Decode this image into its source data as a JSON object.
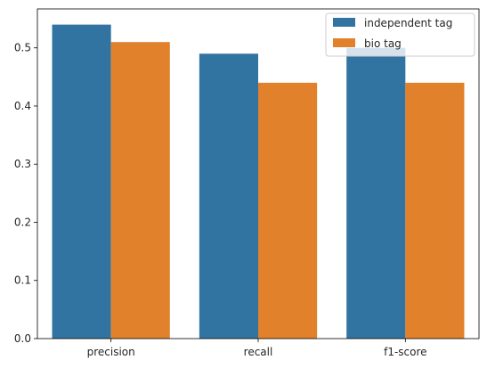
{
  "chart_data": {
    "type": "bar",
    "categories": [
      "precision",
      "recall",
      "f1-score"
    ],
    "series": [
      {
        "name": "independent tag",
        "values": [
          0.54,
          0.49,
          0.5
        ],
        "color": "#3274a1"
      },
      {
        "name": "bio tag",
        "values": [
          0.51,
          0.44,
          0.44
        ],
        "color": "#e1812c"
      }
    ],
    "yticks": [
      "0.0",
      "0.1",
      "0.2",
      "0.3",
      "0.4",
      "0.5"
    ],
    "ylim": [
      0,
      0.567
    ],
    "title": "",
    "xlabel": "",
    "ylabel": "",
    "grid": false,
    "legend": "top-right"
  }
}
